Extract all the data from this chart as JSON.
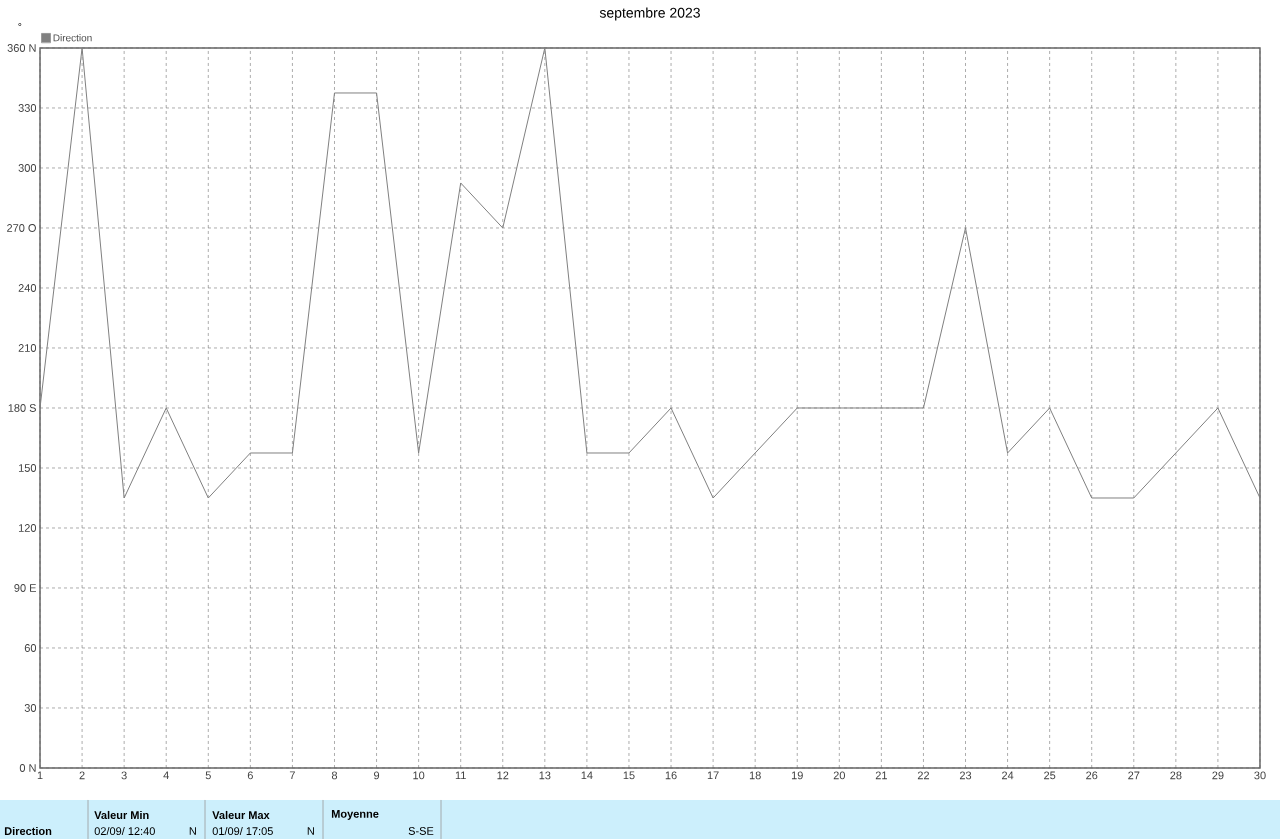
{
  "chart_data": {
    "type": "line",
    "title": "septembre 2023",
    "ylabel": "°",
    "x": [
      1,
      2,
      3,
      4,
      5,
      6,
      7,
      8,
      9,
      10,
      11,
      12,
      13,
      14,
      15,
      16,
      17,
      18,
      19,
      20,
      21,
      22,
      23,
      24,
      25,
      26,
      27,
      28,
      29,
      30
    ],
    "series": [
      {
        "name": "Direction",
        "color": "#808080",
        "values": [
          180,
          360,
          135,
          180,
          135,
          157.5,
          157.5,
          337.5,
          337.5,
          157.5,
          292.5,
          270,
          360,
          157.5,
          157.5,
          180,
          135,
          157.5,
          180,
          180,
          180,
          180,
          270,
          157.5,
          180,
          135,
          135,
          157.5,
          180,
          135
        ]
      }
    ],
    "xlim": [
      1,
      30
    ],
    "xticks": [
      1,
      2,
      3,
      4,
      5,
      6,
      7,
      8,
      9,
      10,
      11,
      12,
      13,
      14,
      15,
      16,
      17,
      18,
      19,
      20,
      21,
      22,
      23,
      24,
      25,
      26,
      27,
      28,
      29,
      30
    ],
    "ylim": [
      0,
      360
    ],
    "yticks": [
      {
        "value": 0,
        "label": "0   N"
      },
      30,
      60,
      {
        "value": 90,
        "label": "90  E"
      },
      120,
      150,
      {
        "value": 180,
        "label": "180 S"
      },
      210,
      240,
      {
        "value": 270,
        "label": "270 O"
      },
      300,
      330,
      {
        "value": 360,
        "label": "360 N"
      }
    ],
    "grid": true,
    "legend": "top left",
    "annotations": [
      "Direction",
      "Valeur Min",
      "02/09/ 12:40",
      "N",
      "Valeur Max",
      "01/09/ 17:05",
      "N",
      "Moyenne",
      "S-SE"
    ]
  }
}
